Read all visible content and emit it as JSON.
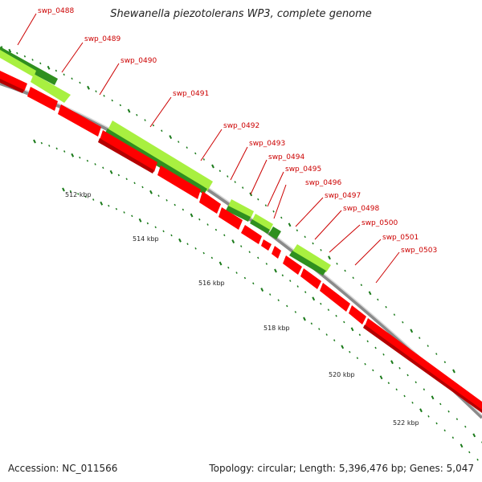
{
  "title": "Shewanella piezotolerans WP3, complete genome",
  "accession": "Accession: NC_011566",
  "summary": "Topology: circular; Length: 5,396,476 bp; Genes: 5,047",
  "colors": {
    "cds": "#ff0000",
    "cds_dark": "#b40000",
    "rna_light": "#a8f040",
    "rna_dark": "#2f8f1f",
    "backbone": "#888888",
    "tick": "#1a7a1a",
    "label": "#cc0000"
  },
  "scale_labels": [
    "512 kbp",
    "514 kbp",
    "516 kbp",
    "518 kbp",
    "520 kbp",
    "522 kbp"
  ],
  "gene_labels": [
    "swp_0488",
    "swp_0489",
    "swp_0490",
    "swp_0491",
    "swp_0492",
    "swp_0493",
    "swp_0494",
    "swp_0495",
    "swp_0496",
    "swp_0497",
    "swp_0498",
    "swp_0500",
    "swp_0501",
    "swp_0503"
  ]
}
